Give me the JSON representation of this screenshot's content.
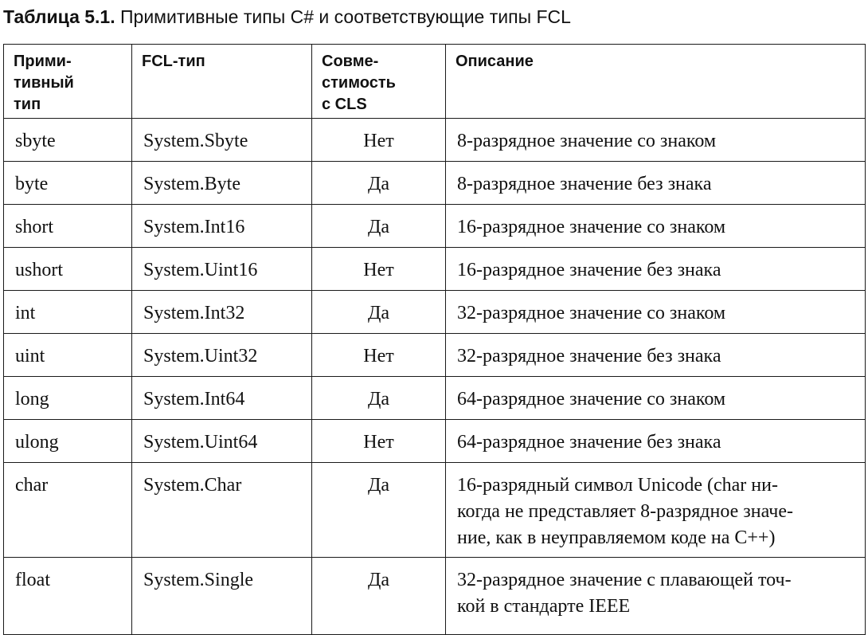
{
  "caption": {
    "label": "Таблица 5.1.",
    "text": " Примитивные типы C# и соответствующие типы FCL"
  },
  "table": {
    "headers": [
      "Прими-\nтивный\nтип",
      "FCL-тип",
      "Совме-\nстимость\nс CLS",
      "Описание"
    ],
    "rows": [
      [
        "sbyte",
        "System.Sbyte",
        "Нет",
        "8-разрядное значение со знаком"
      ],
      [
        "byte",
        "System.Byte",
        "Да",
        "8-разрядное значение без знака"
      ],
      [
        "short",
        "System.Int16",
        "Да",
        "16-разрядное значение со знаком"
      ],
      [
        "ushort",
        "System.Uint16",
        "Нет",
        "16-разрядное значение без знака"
      ],
      [
        "int",
        "System.Int32",
        "Да",
        "32-разрядное значение со знаком"
      ],
      [
        "uint",
        "System.Uint32",
        "Нет",
        "32-разрядное значение без знака"
      ],
      [
        "long",
        "System.Int64",
        "Да",
        "64-разрядное значение со знаком"
      ],
      [
        "ulong",
        "System.Uint64",
        "Нет",
        "64-разрядное значение без знака"
      ],
      [
        "char",
        "System.Char",
        "Да",
        "16-разрядный символ Unicode (char ни-\nкогда не представляет 8-разрядное значе-\nние, как в неуправляемом коде на C++)"
      ],
      [
        "float",
        "System.Single",
        "Да",
        "32-разрядное значение с плавающей точ-\nкой в стандарте IEEE"
      ]
    ]
  }
}
